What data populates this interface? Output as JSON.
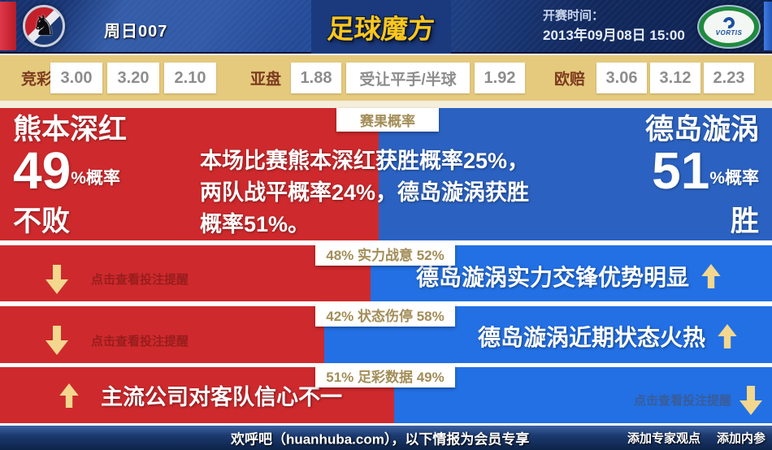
{
  "colors": {
    "home_red": "#ce2a2d",
    "away_blue_panel": "#2b62c2",
    "row_blue": "#2270e4",
    "odds_bar_tan": "#e5ca7e",
    "arrow_gold": "#f3d78e",
    "strip_text_tan": "#a38d58",
    "header_navy": "#16306b"
  },
  "header": {
    "match_number": "周日007",
    "brand": "足球魔方",
    "kickoff_label": "开赛时间：",
    "kickoff_datetime": "2013年09月08日 15:00",
    "away_crest_text": "VORTIS"
  },
  "odds_bar": {
    "jingcai": {
      "label": "竞彩",
      "values": [
        "3.00",
        "3.20",
        "2.10"
      ]
    },
    "yapan": {
      "label": "亚盘",
      "home": "1.88",
      "handicap": "受让平手/半球",
      "away": "1.92"
    },
    "oupei": {
      "label": "欧赔",
      "values": [
        "3.06",
        "3.12",
        "2.23"
      ]
    }
  },
  "result_panel": {
    "badge": "赛果概率",
    "home": {
      "name": "熊本深红",
      "probability": "49",
      "suffix": "%概率",
      "outcome": "不败",
      "width_pct": 49
    },
    "away": {
      "name": "德岛漩涡",
      "probability": "51",
      "suffix": "%概率",
      "outcome": "胜",
      "width_pct": 51
    },
    "summary_line1": "本场比赛熊本深红获胜概率25%，",
    "summary_line2": "两队战平概率24%，德岛漩涡获胜",
    "summary_line3": "概率51%。"
  },
  "factor_rows": [
    {
      "home_pct": 48,
      "away_pct": 52,
      "strip_label": "48% 实力战意 52%",
      "home_text": "点击查看投注提醒",
      "home_arrow": "down",
      "away_text": "德岛漩涡实力交锋优势明显",
      "away_arrow": "up"
    },
    {
      "home_pct": 42,
      "away_pct": 58,
      "strip_label": "42% 状态伤停 58%",
      "home_text": "点击查看投注提醒",
      "home_arrow": "down",
      "away_text": "德岛漩涡近期状态火热",
      "away_arrow": "up"
    },
    {
      "home_pct": 51,
      "away_pct": 49,
      "strip_label": "51% 足彩数据 49%",
      "home_text": "主流公司对客队信心不一",
      "home_arrow": "up",
      "away_text": "点击查看投注提醒",
      "away_arrow": "down"
    }
  ],
  "footer": {
    "site_note": "欢呼吧（huanhuba.com），以下情报为会员专享",
    "link_expert": "添加专家观点",
    "link_insider": "添加内参"
  }
}
